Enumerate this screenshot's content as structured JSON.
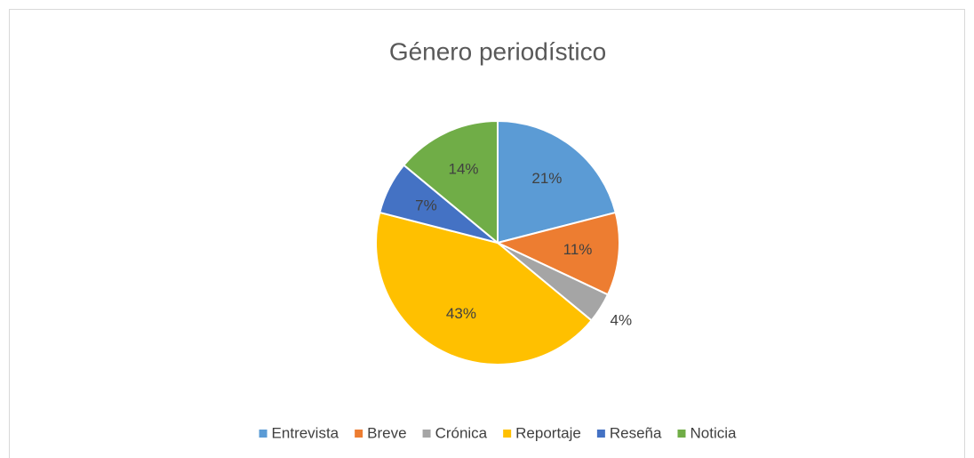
{
  "chart_data": {
    "type": "pie",
    "title": "Género periodístico",
    "categories": [
      "Entrevista",
      "Breve",
      "Crónica",
      "Reportaje",
      "Reseña",
      "Noticia"
    ],
    "values": [
      21,
      11,
      4,
      43,
      7,
      14
    ],
    "value_labels": [
      "21%",
      "11%",
      "4%",
      "43%",
      "7%",
      "14%"
    ],
    "colors": [
      "#5b9bd5",
      "#ed7d31",
      "#a5a5a5",
      "#ffc000",
      "#4472c4",
      "#70ad47"
    ],
    "legend": "bottom"
  }
}
